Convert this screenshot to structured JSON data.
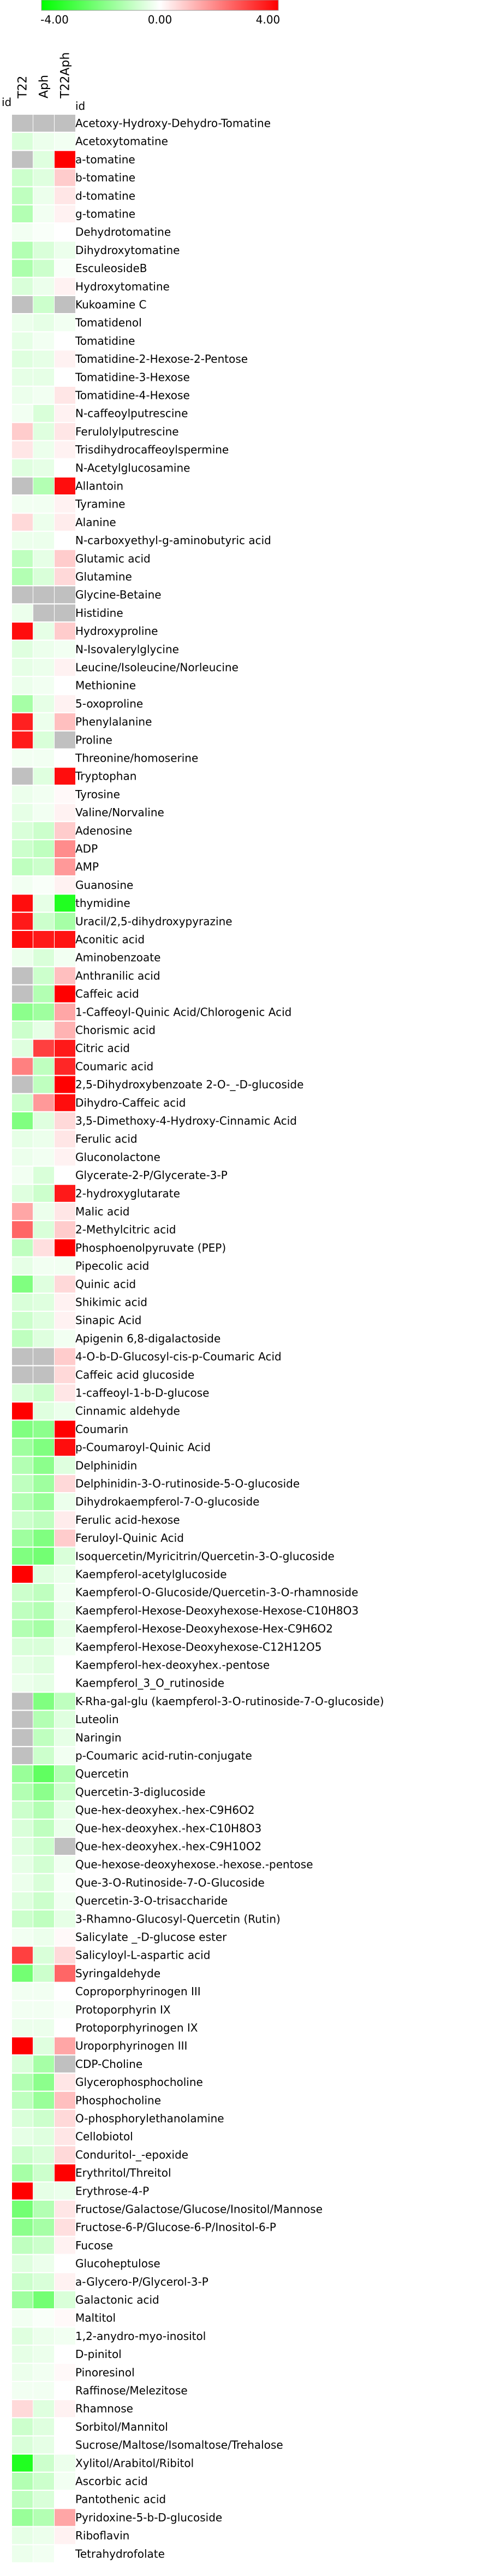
{
  "chart_data": {
    "type": "heatmap",
    "title": "",
    "xlabel": "",
    "ylabel": "",
    "colorbar": {
      "ticks": [
        -4.0,
        0.0,
        4.0
      ],
      "tick_labels": [
        "-4.00",
        "0.00",
        "4.00"
      ],
      "colors": {
        "low": "#00ff00",
        "mid": "#ffffff",
        "high": "#ff0000",
        "missing": "#c0c0c0"
      }
    },
    "id_column_header": "id",
    "corner_header": "id",
    "columns": [
      "T22",
      "Aph",
      "T22Aph"
    ],
    "rows": [
      "Acetoxy-Hydroxy-Dehydro-Tomatine",
      "Acetoxytomatine",
      "a-tomatine",
      "b-tomatine",
      "d-tomatine",
      "g-tomatine",
      "Dehydrotomatine",
      "Dihydroxytomatine",
      "EsculeosideB",
      "Hydroxytomatine",
      "Kukoamine C",
      "Tomatidenol",
      "Tomatidine",
      "Tomatidine-2-Hexose-2-Pentose",
      "Tomatidine-3-Hexose",
      "Tomatidine-4-Hexose",
      "N-caffeoylputrescine",
      "Ferulolylputrescine",
      "Trisdihydrocaffeoylspermine",
      "N-Acetylglucosamine",
      "Allantoin",
      "Tyramine",
      "Alanine",
      "N-carboxyethyl-g-aminobutyric acid",
      "Glutamic acid",
      "Glutamine",
      "Glycine-Betaine",
      "Histidine",
      "Hydroxyproline",
      "N-Isovalerylglycine",
      "Leucine/Isoleucine/Norleucine",
      "Methionine",
      "5-oxoproline",
      "Phenylalanine",
      "Proline",
      "Threonine/homoserine",
      "Tryptophan",
      "Tyrosine",
      "Valine/Norvaline",
      "Adenosine",
      "ADP",
      "AMP",
      "Guanosine",
      "thymidine",
      "Uracil/2,5-dihydroxypyrazine",
      "Aconitic acid",
      "Aminobenzoate",
      "Anthranilic acid",
      "Caffeic acid",
      "1-Caffeoyl-Quinic Acid/Chlorogenic Acid",
      "Chorismic acid",
      "Citric acid",
      "Coumaric acid",
      "2,5-Dihydroxybenzoate 2-O-_-D-glucoside",
      "Dihydro-Caffeic acid",
      "3,5-Dimethoxy-4-Hydroxy-Cinnamic Acid",
      "Ferulic acid",
      "Gluconolactone",
      "Glycerate-2-P/Glycerate-3-P",
      "2-hydroxyglutarate",
      "Malic acid",
      "2-Methylcitric acid",
      "Phosphoenolpyruvate (PEP)",
      "Pipecolic acid",
      "Quinic acid",
      "Shikimic acid",
      "Sinapic Acid",
      "Apigenin 6,8-digalactoside",
      "4-O-b-D-Glucosyl-cis-p-Coumaric Acid",
      "Caffeic acid glucoside",
      "1-caffeoyl-1-b-D-glucose",
      "Cinnamic aldehyde",
      "Coumarin",
      "p-Coumaroyl-Quinic Acid",
      "Delphinidin",
      "Delphinidin-3-O-rutinoside-5-O-glucoside",
      "Dihydrokaempferol-7-O-glucoside",
      "Ferulic acid-hexose",
      "Feruloyl-Quinic Acid",
      "Isoquercetin/Myricitrin/Quercetin-3-O-glucoside",
      "Kaempferol-acetylglucoside",
      "Kaempferol-O-Glucoside/Quercetin-3-O-rhamnoside",
      "Kaempferol-Hexose-Deoxyhexose-Hexose-C10H8O3",
      "Kaempferol-Hexose-Deoxyhexose-Hex-C9H6O2",
      "Kaempferol-Hexose-Deoxyhexose-C12H12O5",
      "Kaempferol-hex-deoxyhex.-pentose",
      "Kaempferol_3_O_rutinoside",
      "K-Rha-gal-glu (kaempferol-3-O-rutinoside-7-O-glucoside)",
      "Luteolin",
      "Naringin",
      "p-Coumaric acid-rutin-conjugate",
      "Quercetin",
      "Quercetin-3-diglucoside",
      "Que-hex-deoxyhex.-hex-C9H6O2",
      "Que-hex-deoxyhex.-hex-C10H8O3",
      "Que-hex-deoxyhex.-hex-C9H10O2",
      "Que-hexose-deoxyhexose.-hexose.-pentose",
      "Que-3-O-Rutinoside-7-O-Glucoside",
      "Quercetin-3-O-trisaccharide",
      "3-Rhamno-Glucosyl-Quercetin (Rutin)",
      "Salicylate _-D-glucose ester",
      "Salicyloyl-L-aspartic acid",
      "Syringaldehyde",
      "Coproporphyrinogen III",
      "Protoporphyrin IX",
      "Protoporphyrinogen IX",
      "Uroporphyrinogen III",
      "CDP-Choline",
      "Glycerophosphocholine",
      "Phosphocholine",
      "O-phosphorylethanolamine",
      "Cellobiotol",
      "Conduritol-_-epoxide",
      "Erythritol/Threitol",
      "Erythrose-4-P",
      "Fructose/Galactose/Glucose/Inositol/Mannose",
      "Fructose-6-P/Glucose-6-P/Inositol-6-P",
      "Fucose",
      "Glucoheptulose",
      "a-Glycero-P/Glycerol-3-P",
      "Galactonic acid",
      "Maltitol",
      "1,2-anydro-myo-inositol",
      "D-pinitol",
      "Pinoresinol",
      "Raffinose/Melezitose",
      "Rhamnose",
      "Sorbitol/Mannitol",
      "Sucrose/Maltose/Isomaltose/Trehalose",
      "Xylitol/Arabitol/Ribitol",
      "Ascorbic acid",
      "Pantothenic acid",
      "Pyridoxine-5-b-D-glucoside",
      "Riboflavin",
      "Tetrahydrofolate"
    ],
    "values": [
      [
        null,
        null,
        null
      ],
      [
        -0.6,
        -0.3,
        -0.2
      ],
      [
        null,
        -0.5,
        4.0
      ],
      [
        -0.8,
        -0.5,
        0.8
      ],
      [
        -1.0,
        -0.3,
        0.4
      ],
      [
        -1.2,
        -0.2,
        0.2
      ],
      [
        -0.2,
        -0.1,
        0.0
      ],
      [
        -1.2,
        -0.6,
        -0.3
      ],
      [
        -1.3,
        -0.8,
        -0.1
      ],
      [
        -0.6,
        -0.3,
        0.2
      ],
      [
        null,
        -0.8,
        null
      ],
      [
        -0.3,
        -0.4,
        -0.2
      ],
      [
        -0.4,
        -0.2,
        0.0
      ],
      [
        -0.5,
        -0.4,
        0.2
      ],
      [
        -0.4,
        -0.4,
        0.0
      ],
      [
        -0.3,
        -0.2,
        0.4
      ],
      [
        -0.2,
        -0.6,
        0.2
      ],
      [
        0.8,
        -0.5,
        0.4
      ],
      [
        0.4,
        -0.3,
        0.2
      ],
      [
        -0.5,
        -0.4,
        0.0
      ],
      [
        null,
        -1.2,
        3.8
      ],
      [
        -0.2,
        -0.2,
        0.2
      ],
      [
        0.6,
        -0.3,
        0.3
      ],
      [
        -0.3,
        -0.3,
        0.0
      ],
      [
        -1.0,
        -0.4,
        0.8
      ],
      [
        -1.2,
        -0.6,
        0.6
      ],
      [
        null,
        null,
        null
      ],
      [
        -0.3,
        null,
        null
      ],
      [
        3.8,
        -0.4,
        0.8
      ],
      [
        -0.5,
        -0.3,
        -0.2
      ],
      [
        -0.4,
        -0.3,
        0.2
      ],
      [
        -0.3,
        -0.2,
        0.0
      ],
      [
        -1.4,
        -0.4,
        0.2
      ],
      [
        3.5,
        -0.3,
        1.0
      ],
      [
        3.6,
        -0.6,
        null
      ],
      [
        -0.2,
        -0.2,
        0.0
      ],
      [
        null,
        -0.5,
        3.8
      ],
      [
        -0.3,
        -0.2,
        0.1
      ],
      [
        -0.4,
        -0.2,
        0.2
      ],
      [
        -0.6,
        -0.8,
        0.8
      ],
      [
        -0.8,
        -1.0,
        1.8
      ],
      [
        -1.0,
        -0.8,
        1.6
      ],
      [
        -0.2,
        -0.1,
        0.2
      ],
      [
        3.8,
        -0.4,
        -3.5
      ],
      [
        3.6,
        -0.8,
        -1.4
      ],
      [
        3.8,
        3.6,
        3.7
      ],
      [
        -0.3,
        -0.6,
        -0.2
      ],
      [
        null,
        -0.8,
        1.0
      ],
      [
        null,
        -1.2,
        4.0
      ],
      [
        -1.8,
        -1.5,
        1.4
      ],
      [
        -0.8,
        -0.4,
        1.2
      ],
      [
        -0.5,
        3.0,
        3.6
      ],
      [
        2.0,
        -1.0,
        3.4
      ],
      [
        null,
        -1.0,
        4.0
      ],
      [
        -0.8,
        1.6,
        3.8
      ],
      [
        -2.0,
        -0.5,
        0.6
      ],
      [
        -0.4,
        -0.3,
        0.4
      ],
      [
        -0.3,
        -0.2,
        0.2
      ],
      [
        -0.2,
        -0.6,
        0.0
      ],
      [
        -0.5,
        -0.8,
        3.6
      ],
      [
        1.4,
        -0.3,
        0.4
      ],
      [
        2.4,
        -0.6,
        0.8
      ],
      [
        -1.0,
        0.5,
        4.0
      ],
      [
        -0.4,
        -0.2,
        -0.2
      ],
      [
        -2.0,
        -0.5,
        0.6
      ],
      [
        -0.6,
        -0.5,
        0.2
      ],
      [
        -0.8,
        -0.5,
        0.2
      ],
      [
        -1.0,
        -0.5,
        -0.2
      ],
      [
        null,
        null,
        0.8
      ],
      [
        null,
        null,
        0.6
      ],
      [
        -0.6,
        -0.8,
        0.4
      ],
      [
        4.0,
        -0.5,
        -0.3
      ],
      [
        -2.0,
        -1.8,
        4.0
      ],
      [
        -1.5,
        -2.0,
        3.8
      ],
      [
        -1.2,
        -1.8,
        -0.5
      ],
      [
        -1.0,
        -1.5,
        0.6
      ],
      [
        -1.2,
        -1.6,
        -0.3
      ],
      [
        -0.8,
        -1.0,
        0.3
      ],
      [
        -1.5,
        -2.0,
        0.8
      ],
      [
        -2.0,
        -2.2,
        -0.6
      ],
      [
        4.0,
        -0.5,
        -0.3
      ],
      [
        -0.8,
        -1.0,
        -0.2
      ],
      [
        -1.0,
        -1.2,
        -0.3
      ],
      [
        -1.2,
        -1.4,
        -0.4
      ],
      [
        -0.6,
        -0.6,
        -0.2
      ],
      [
        -0.4,
        -0.5,
        0.0
      ],
      [
        -0.3,
        -0.4,
        0.0
      ],
      [
        null,
        -2.0,
        -1.0
      ],
      [
        null,
        -1.2,
        -0.5
      ],
      [
        null,
        -1.0,
        -0.4
      ],
      [
        null,
        -0.8,
        -0.2
      ],
      [
        -1.6,
        -2.5,
        -1.2
      ],
      [
        -1.2,
        -1.8,
        -0.8
      ],
      [
        -0.8,
        -1.2,
        -0.4
      ],
      [
        -0.6,
        -1.0,
        -0.3
      ],
      [
        -0.5,
        -0.8,
        null
      ],
      [
        -0.4,
        -0.7,
        -0.2
      ],
      [
        -0.3,
        -0.6,
        -0.1
      ],
      [
        -0.5,
        -0.8,
        -0.2
      ],
      [
        -0.8,
        -1.0,
        -0.4
      ],
      [
        -0.2,
        -0.3,
        0.1
      ],
      [
        3.0,
        -0.6,
        0.6
      ],
      [
        -2.2,
        -0.8,
        2.4
      ],
      [
        -0.2,
        -0.2,
        0.0
      ],
      [
        -0.2,
        -0.2,
        -0.1
      ],
      [
        -0.3,
        -0.3,
        0.0
      ],
      [
        4.0,
        -0.5,
        1.4
      ],
      [
        -0.6,
        -1.4,
        null
      ],
      [
        -1.2,
        -1.8,
        0.4
      ],
      [
        -1.0,
        -1.6,
        1.0
      ],
      [
        -0.6,
        -0.8,
        0.6
      ],
      [
        -0.4,
        -0.5,
        0.4
      ],
      [
        -0.8,
        -0.6,
        0.6
      ],
      [
        -1.4,
        -0.8,
        4.0
      ],
      [
        4.0,
        -0.4,
        -0.3
      ],
      [
        -2.2,
        -1.2,
        0.4
      ],
      [
        -1.8,
        -1.4,
        0.5
      ],
      [
        -1.0,
        -0.8,
        0.2
      ],
      [
        -0.5,
        -0.3,
        0.0
      ],
      [
        -0.8,
        -0.6,
        0.2
      ],
      [
        -1.5,
        -2.2,
        -0.6
      ],
      [
        -0.2,
        -0.1,
        0.1
      ],
      [
        -0.5,
        -0.3,
        -0.2
      ],
      [
        -0.4,
        -0.3,
        0.0
      ],
      [
        -0.3,
        -0.2,
        0.1
      ],
      [
        -0.2,
        -0.2,
        0.0
      ],
      [
        0.6,
        -0.5,
        0.2
      ],
      [
        -0.8,
        -0.5,
        0.0
      ],
      [
        -0.6,
        -0.4,
        0.0
      ],
      [
        -3.5,
        -0.8,
        -0.3
      ],
      [
        -1.2,
        -0.8,
        -0.2
      ],
      [
        -1.0,
        -0.6,
        0.0
      ],
      [
        -1.6,
        -1.2,
        1.4
      ],
      [
        -0.4,
        -0.3,
        0.2
      ],
      [
        -0.3,
        -0.2,
        0.0
      ]
    ]
  }
}
